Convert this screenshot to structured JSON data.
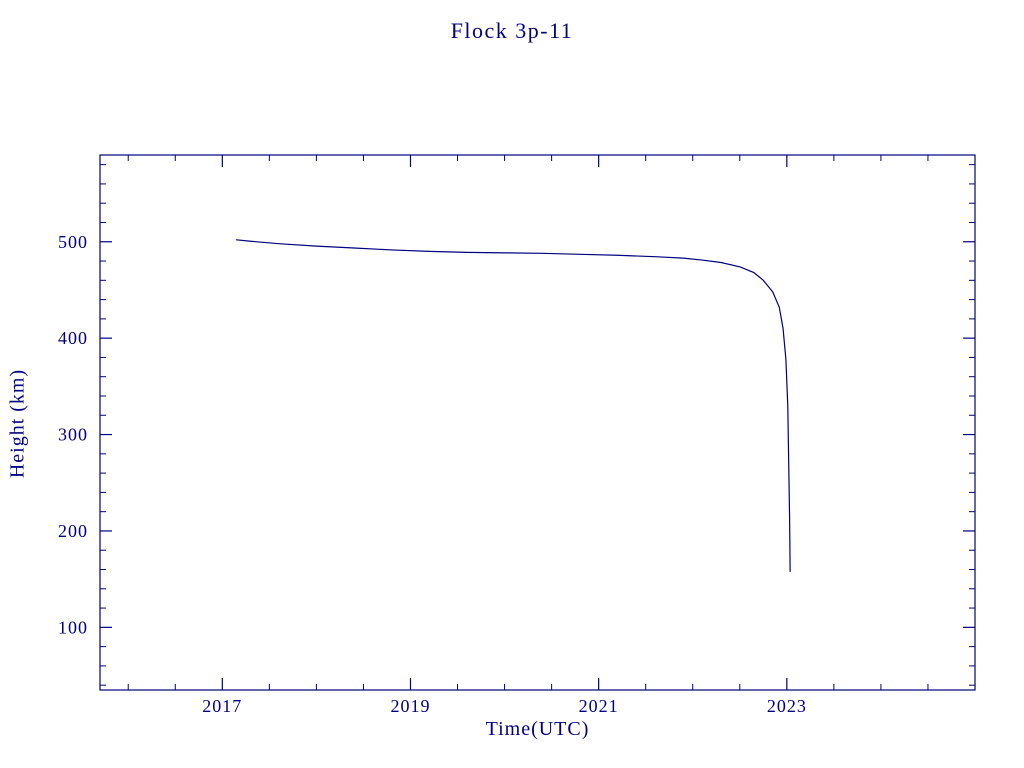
{
  "accent_color": "#000080",
  "background_color": "#ffffff",
  "chart_data": {
    "type": "line",
    "title": "Flock 3p-11",
    "xlabel": "Time(UTC)",
    "ylabel": "Height (km)",
    "xlim": [
      2015.7,
      2025.0
    ],
    "ylim": [
      35,
      590
    ],
    "x_ticks": [
      2017,
      2019,
      2021,
      2023
    ],
    "x_tick_labels": [
      "2017",
      "2019",
      "2021",
      "2023"
    ],
    "y_ticks": [
      100,
      200,
      300,
      400,
      500
    ],
    "y_tick_labels": [
      "100",
      "200",
      "300",
      "400",
      "500"
    ],
    "x_minor_step": 0.5,
    "y_minor_step": 20,
    "grid": false,
    "legend_position": "none",
    "frame_color": "#000080",
    "line_color": "#000080",
    "series": [
      {
        "name": "Flock 3p-11 height",
        "points": [
          [
            2017.15,
            502
          ],
          [
            2017.3,
            500.5
          ],
          [
            2017.6,
            498
          ],
          [
            2018.0,
            495.5
          ],
          [
            2018.4,
            493.5
          ],
          [
            2018.8,
            491.5
          ],
          [
            2019.2,
            490
          ],
          [
            2019.6,
            489
          ],
          [
            2020.0,
            488.5
          ],
          [
            2020.4,
            488
          ],
          [
            2020.8,
            487
          ],
          [
            2021.2,
            486
          ],
          [
            2021.6,
            484.5
          ],
          [
            2021.9,
            483
          ],
          [
            2022.1,
            481
          ],
          [
            2022.3,
            478.5
          ],
          [
            2022.5,
            474
          ],
          [
            2022.65,
            468
          ],
          [
            2022.75,
            460
          ],
          [
            2022.85,
            448
          ],
          [
            2022.92,
            432
          ],
          [
            2022.96,
            410
          ],
          [
            2022.99,
            378
          ],
          [
            2023.01,
            330
          ],
          [
            2023.02,
            270
          ],
          [
            2023.03,
            210
          ],
          [
            2023.035,
            158
          ]
        ]
      }
    ]
  }
}
